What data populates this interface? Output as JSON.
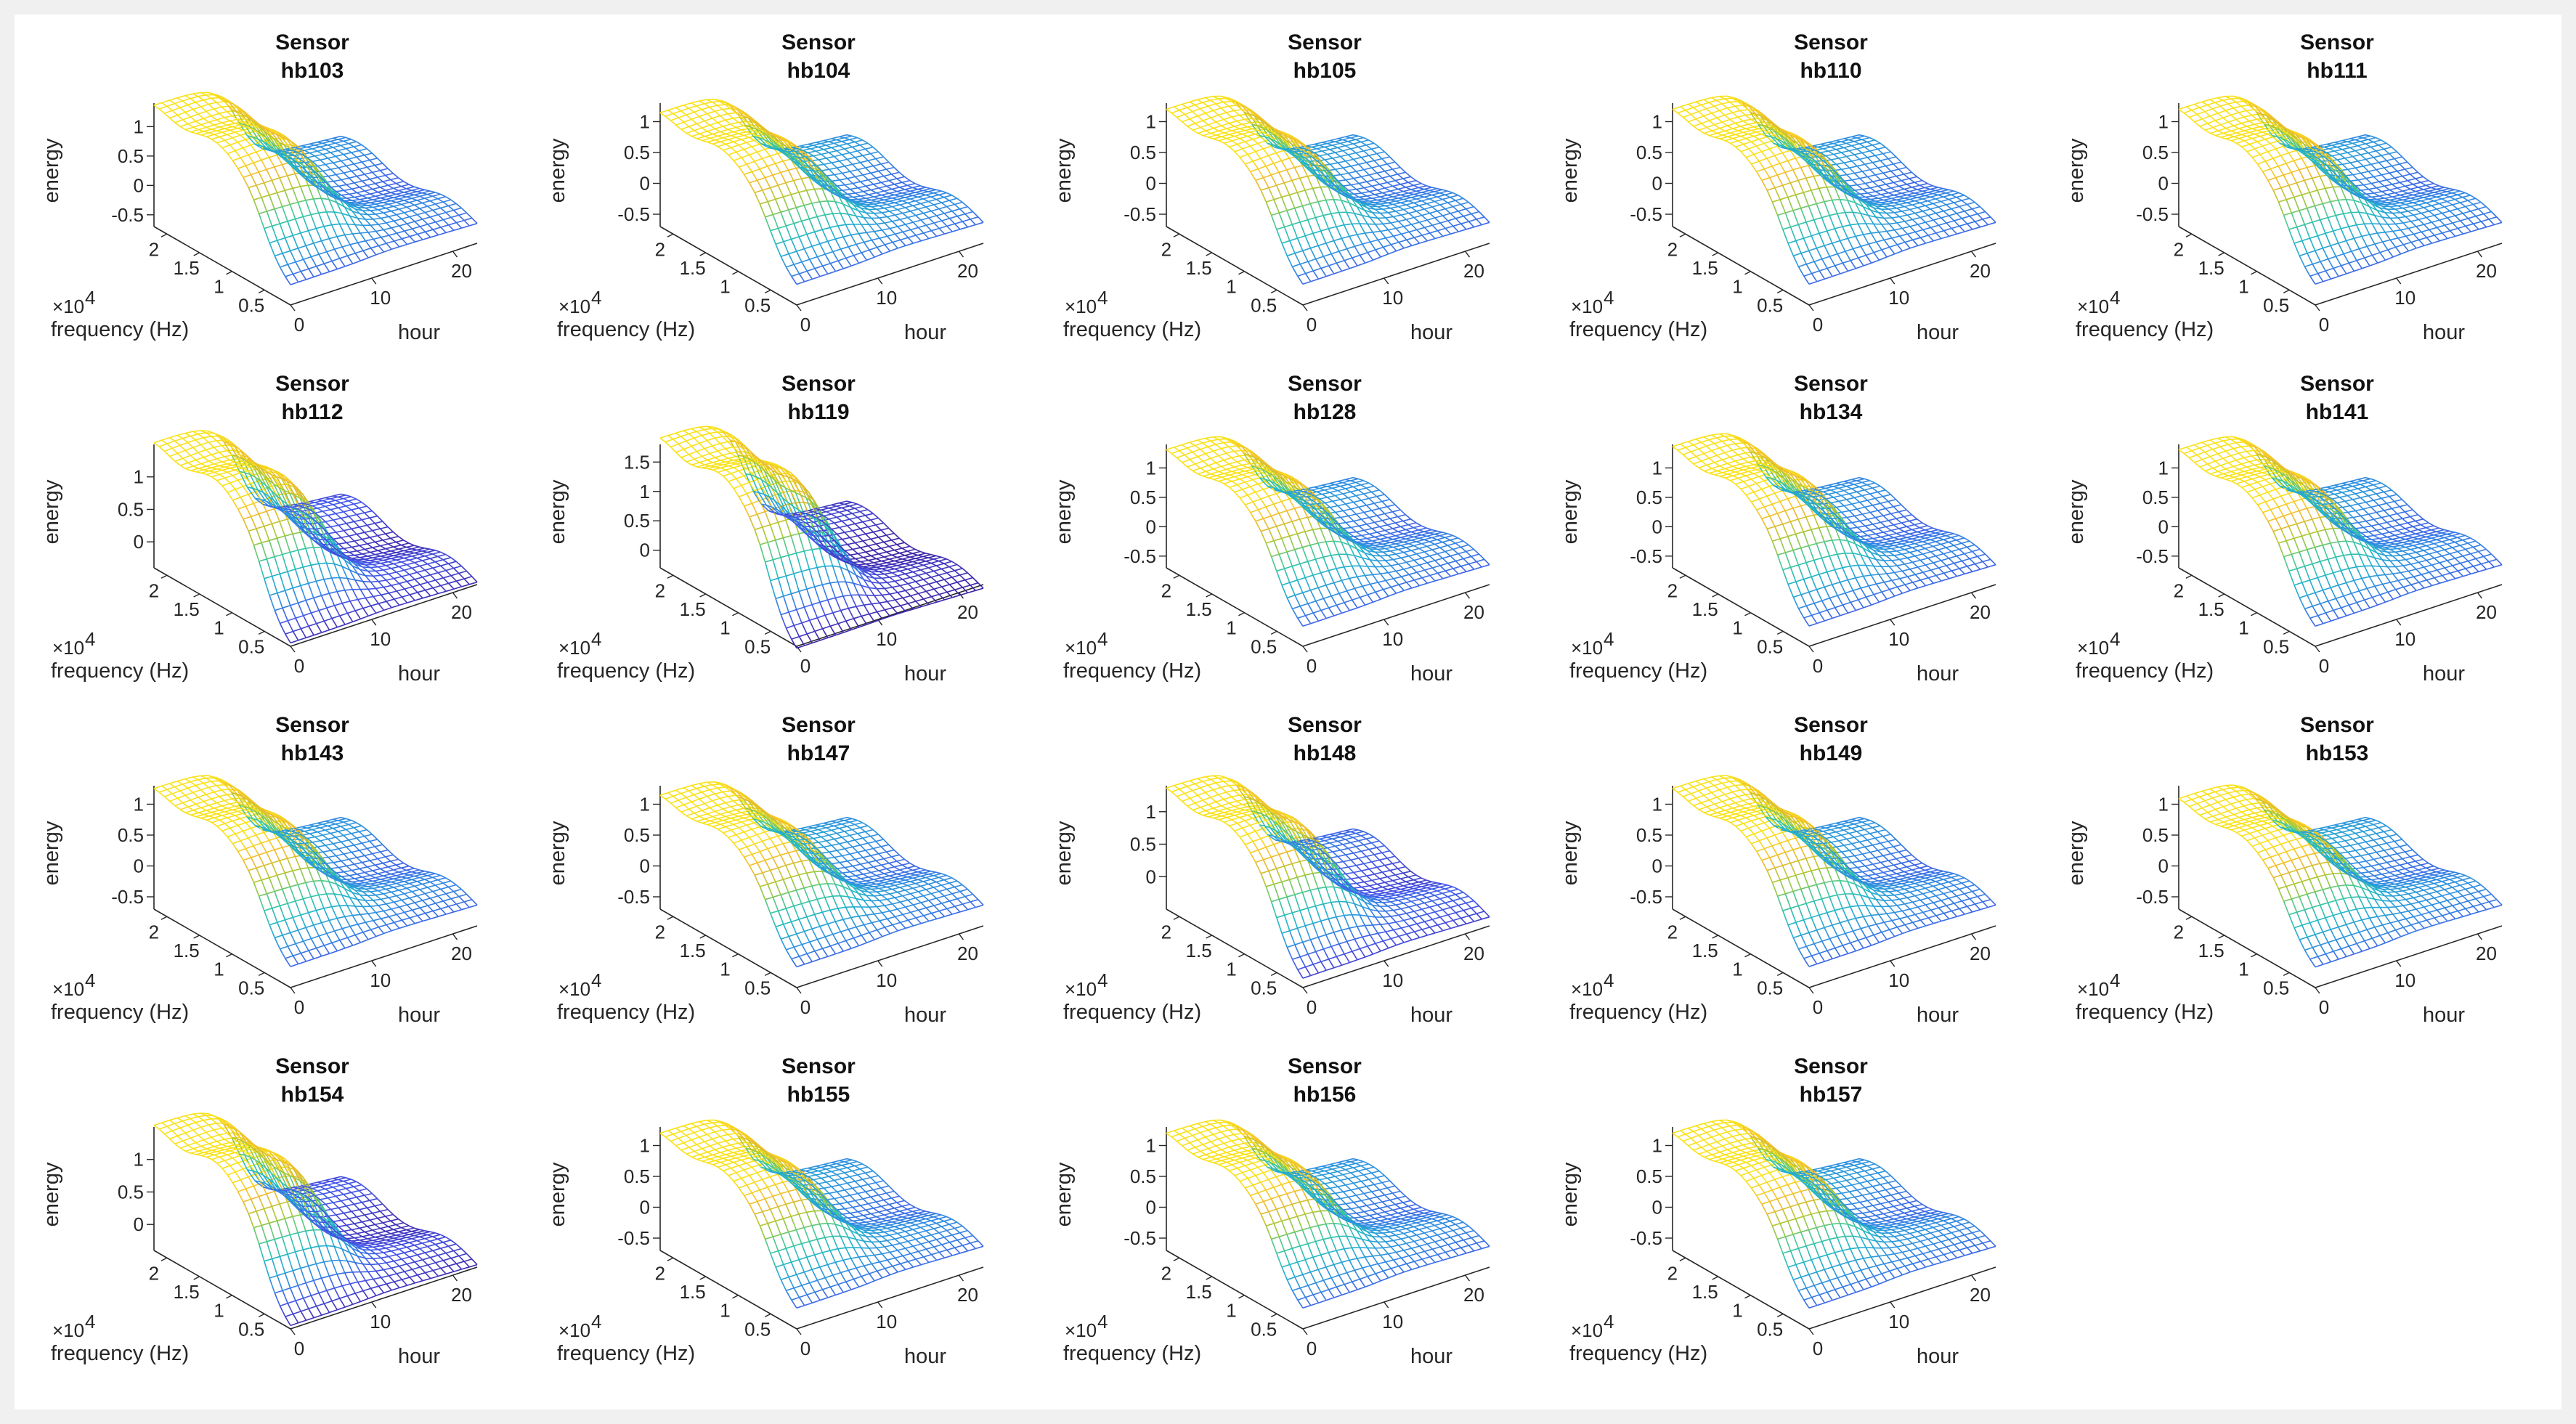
{
  "window": {
    "background": "#f0f0f0"
  },
  "chart_data": {
    "type": "surface-mesh-grid",
    "layout": {
      "rows": 4,
      "cols": 5
    },
    "shared": {
      "xlabel": "frequency (Hz)",
      "ylabel": "hour",
      "zlabel": "energy",
      "x_exponent_label": "×10",
      "x_exponent": "4",
      "x_ticks": [
        "0.5",
        "1",
        "1.5",
        "2"
      ],
      "x_range": [
        0.1,
        2.2
      ],
      "y_ticks": [
        "0",
        "10",
        "20"
      ],
      "y_range": [
        0,
        23
      ],
      "colormap": [
        "#3e26a8",
        "#4455e8",
        "#2f8fe0",
        "#22b5c8",
        "#3ec79a",
        "#a8c833",
        "#f1b92e",
        "#f9e21b"
      ]
    },
    "panels": [
      {
        "title_top": "Sensor",
        "title_bottom": "hb103",
        "z_ticks": [
          "-0.5",
          "0",
          "0.5",
          "1"
        ],
        "z_range": [
          -0.7,
          1.4
        ],
        "peak": 1.25
      },
      {
        "title_top": "Sensor",
        "title_bottom": "hb104",
        "z_ticks": [
          "-0.5",
          "0",
          "0.5",
          "1"
        ],
        "z_range": [
          -0.7,
          1.3
        ],
        "peak": 1.05
      },
      {
        "title_top": "Sensor",
        "title_bottom": "hb105",
        "z_ticks": [
          "-0.5",
          "0",
          "0.5",
          "1"
        ],
        "z_range": [
          -0.7,
          1.3
        ],
        "peak": 1.1
      },
      {
        "title_top": "Sensor",
        "title_bottom": "hb110",
        "z_ticks": [
          "-0.5",
          "0",
          "0.5",
          "1"
        ],
        "z_range": [
          -0.7,
          1.3
        ],
        "peak": 1.1
      },
      {
        "title_top": "Sensor",
        "title_bottom": "hb111",
        "z_ticks": [
          "-0.5",
          "0",
          "0.5",
          "1"
        ],
        "z_range": [
          -0.7,
          1.3
        ],
        "peak": 1.1
      },
      {
        "title_top": "Sensor",
        "title_bottom": "hb112",
        "z_ticks": [
          "0",
          "0.5",
          "1"
        ],
        "z_range": [
          -0.4,
          1.5
        ],
        "peak": 1.4
      },
      {
        "title_top": "Sensor",
        "title_bottom": "hb119",
        "z_ticks": [
          "0",
          "0.5",
          "1",
          "1.5"
        ],
        "z_range": [
          -0.3,
          1.8
        ],
        "peak": 1.75
      },
      {
        "title_top": "Sensor",
        "title_bottom": "hb128",
        "z_ticks": [
          "-0.5",
          "0",
          "0.5",
          "1"
        ],
        "z_range": [
          -0.7,
          1.4
        ],
        "peak": 1.2
      },
      {
        "title_top": "Sensor",
        "title_bottom": "hb134",
        "z_ticks": [
          "-0.5",
          "0",
          "0.5",
          "1"
        ],
        "z_range": [
          -0.7,
          1.4
        ],
        "peak": 1.25
      },
      {
        "title_top": "Sensor",
        "title_bottom": "hb141",
        "z_ticks": [
          "-0.5",
          "0",
          "0.5",
          "1"
        ],
        "z_range": [
          -0.7,
          1.4
        ],
        "peak": 1.2
      },
      {
        "title_top": "Sensor",
        "title_bottom": "hb143",
        "z_ticks": [
          "-0.5",
          "0",
          "0.5",
          "1"
        ],
        "z_range": [
          -0.7,
          1.3
        ],
        "peak": 1.15
      },
      {
        "title_top": "Sensor",
        "title_bottom": "hb147",
        "z_ticks": [
          "-0.5",
          "0",
          "0.5",
          "1"
        ],
        "z_range": [
          -0.7,
          1.3
        ],
        "peak": 1.05
      },
      {
        "title_top": "Sensor",
        "title_bottom": "hb148",
        "z_ticks": [
          "0",
          "0.5",
          "1"
        ],
        "z_range": [
          -0.5,
          1.4
        ],
        "peak": 1.25
      },
      {
        "title_top": "Sensor",
        "title_bottom": "hb149",
        "z_ticks": [
          "-0.5",
          "0",
          "0.5",
          "1"
        ],
        "z_range": [
          -0.7,
          1.3
        ],
        "peak": 1.15
      },
      {
        "title_top": "Sensor",
        "title_bottom": "hb153",
        "z_ticks": [
          "-0.5",
          "0",
          "0.5",
          "1"
        ],
        "z_range": [
          -0.7,
          1.3
        ],
        "peak": 1.0
      },
      {
        "title_top": "Sensor",
        "title_bottom": "hb154",
        "z_ticks": [
          "0",
          "0.5",
          "1"
        ],
        "z_range": [
          -0.4,
          1.5
        ],
        "peak": 1.4
      },
      {
        "title_top": "Sensor",
        "title_bottom": "hb155",
        "z_ticks": [
          "-0.5",
          "0",
          "0.5",
          "1"
        ],
        "z_range": [
          -0.7,
          1.3
        ],
        "peak": 1.1
      },
      {
        "title_top": "Sensor",
        "title_bottom": "hb156",
        "z_ticks": [
          "-0.5",
          "0",
          "0.5",
          "1"
        ],
        "z_range": [
          -0.7,
          1.3
        ],
        "peak": 1.1
      },
      {
        "title_top": "Sensor",
        "title_bottom": "hb157",
        "z_ticks": [
          "-0.5",
          "0",
          "0.5",
          "1"
        ],
        "z_range": [
          -0.7,
          1.3
        ],
        "peak": 1.1
      }
    ]
  }
}
